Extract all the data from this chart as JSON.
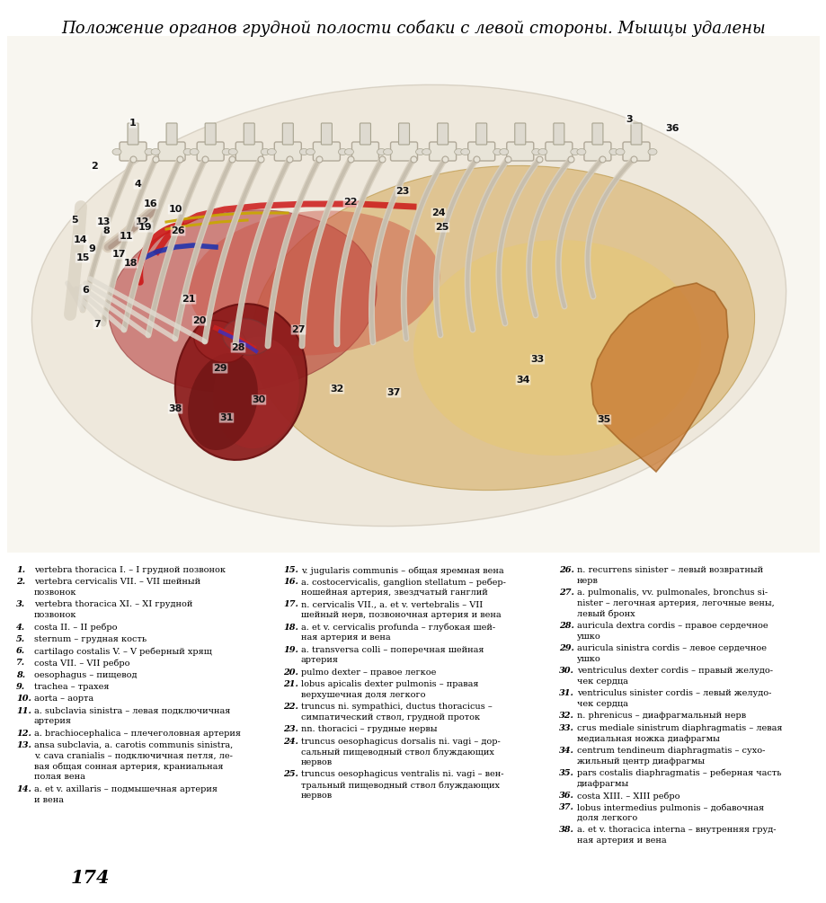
{
  "title": "Положение органов грудной полости собаки с левой стороны. Мышцы удалены",
  "background_color": "#ffffff",
  "page_number": "174",
  "legend_col1": [
    [
      "1.",
      "vertebra thoracica I. – I грудной позвонок"
    ],
    [
      "2.",
      "vertebra cervicalis VII. – VII шейный",
      "позвонок"
    ],
    [
      "3.",
      "vertebra thoracica XI. – XI грудной",
      "позвонок"
    ],
    [
      "4.",
      "costa II. – II ребро"
    ],
    [
      "5.",
      "sternum – грудная кость"
    ],
    [
      "6.",
      "cartilago costalis V. – V реберный хрящ"
    ],
    [
      "7.",
      "costa VII. – VII ребро"
    ],
    [
      "8.",
      "oesophagus – пищевод"
    ],
    [
      "9.",
      "trachea – трахея"
    ],
    [
      "10.",
      "aorta – аорта"
    ],
    [
      "11.",
      "a. subclavia sinistra – левая подключичная",
      "артерия"
    ],
    [
      "12.",
      "a. brachiocephalica – плечеголовная артерия"
    ],
    [
      "13.",
      "ansa subclavia, a. carotis communis sinistra,",
      "v. cava cranialis – подключичная петля, ле-",
      "вая общая сонная артерия, краниальная",
      "полая вена"
    ],
    [
      "14.",
      "a. et v. axillaris – подмышечная артерия",
      "и вена"
    ]
  ],
  "legend_col2": [
    [
      "15.",
      "v. jugularis communis – общая яремная вена"
    ],
    [
      "16.",
      "a. costocervicalis, ganglion stellatum – ребер-",
      "ношейная артерия, звездчатый ганглий"
    ],
    [
      "17.",
      "n. cervicalis VII., a. et v. vertebralis – VII",
      "шейный нерв, позвоночная артерия и вена"
    ],
    [
      "18.",
      "a. et v. cervicalis profunda – глубокая шей-",
      "ная артерия и вена"
    ],
    [
      "19.",
      "a. transversa colli – поперечная шейная",
      "артерия"
    ],
    [
      "20.",
      "pulmo dexter – правое легкое"
    ],
    [
      "21.",
      "lobus apicalis dexter pulmonis – правая",
      "верхушечная доля легкого"
    ],
    [
      "22.",
      "truncus ni. sympathici, ductus thoracicus –",
      "симпатический ствол, грудной проток"
    ],
    [
      "23.",
      "nn. thoracici – грудные нервы"
    ],
    [
      "24.",
      "truncus oesophagicus dorsalis ni. vagi – дор-",
      "сальный пищеводный ствол блуждающих",
      "нервов"
    ],
    [
      "25.",
      "truncus oesophagicus ventralis ni. vagi – вен-",
      "тральный пищеводный ствол блуждающих",
      "нервов"
    ]
  ],
  "legend_col3": [
    [
      "26.",
      "n. recurrens sinister – левый возвратный",
      "нерв"
    ],
    [
      "27.",
      "a. pulmonalis, vv. pulmonales, bronchus si-",
      "nister – легочная артерия, легочные вены,",
      "левый бронх"
    ],
    [
      "28.",
      "auricula dextra cordis – правое сердечное",
      "ушко"
    ],
    [
      "29.",
      "auricula sinistra cordis – левое сердечное",
      "ушко"
    ],
    [
      "30.",
      "ventriculus dexter cordis – правый желудо-",
      "чек сердца"
    ],
    [
      "31.",
      "ventriculus sinister cordis – левый желудо-",
      "чек сердца"
    ],
    [
      "32.",
      "n. phrenicus – диафрагмальный нерв"
    ],
    [
      "33.",
      "crus mediale sinistrum diaphragmatis – левая",
      "медиальная ножка диафрагмы"
    ],
    [
      "34.",
      "centrum tendineum diaphragmatis – сухо-",
      "жильный центр диафрагмы"
    ],
    [
      "35.",
      "pars costalis diaphragmatis – реберная часть",
      "диафрагмы"
    ],
    [
      "36.",
      "costa XIII. – XIII ребро"
    ],
    [
      "37.",
      "lobus intermedius pulmonis – добавочная",
      "доля легкого"
    ],
    [
      "38.",
      "a. et v. thoracica interna – внутренняя груд-",
      "ная артерия и вена"
    ]
  ]
}
